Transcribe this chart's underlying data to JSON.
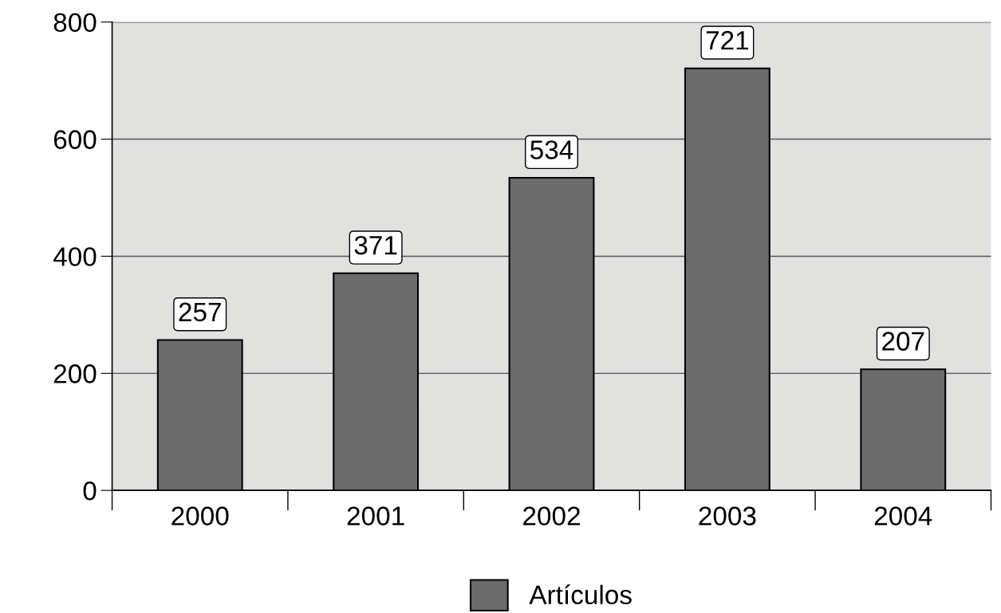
{
  "chart_data": {
    "type": "bar",
    "categories": [
      "2000",
      "2001",
      "2002",
      "2003",
      "2004"
    ],
    "series": [
      {
        "name": "Artículos",
        "color": "#6b6b6b",
        "values": [
          257,
          371,
          534,
          721,
          207
        ]
      }
    ],
    "ylim": [
      0,
      800
    ],
    "yticks": [
      0,
      200,
      400,
      600,
      800
    ],
    "grid": "y",
    "legend": "bottom",
    "data_labels": true
  }
}
